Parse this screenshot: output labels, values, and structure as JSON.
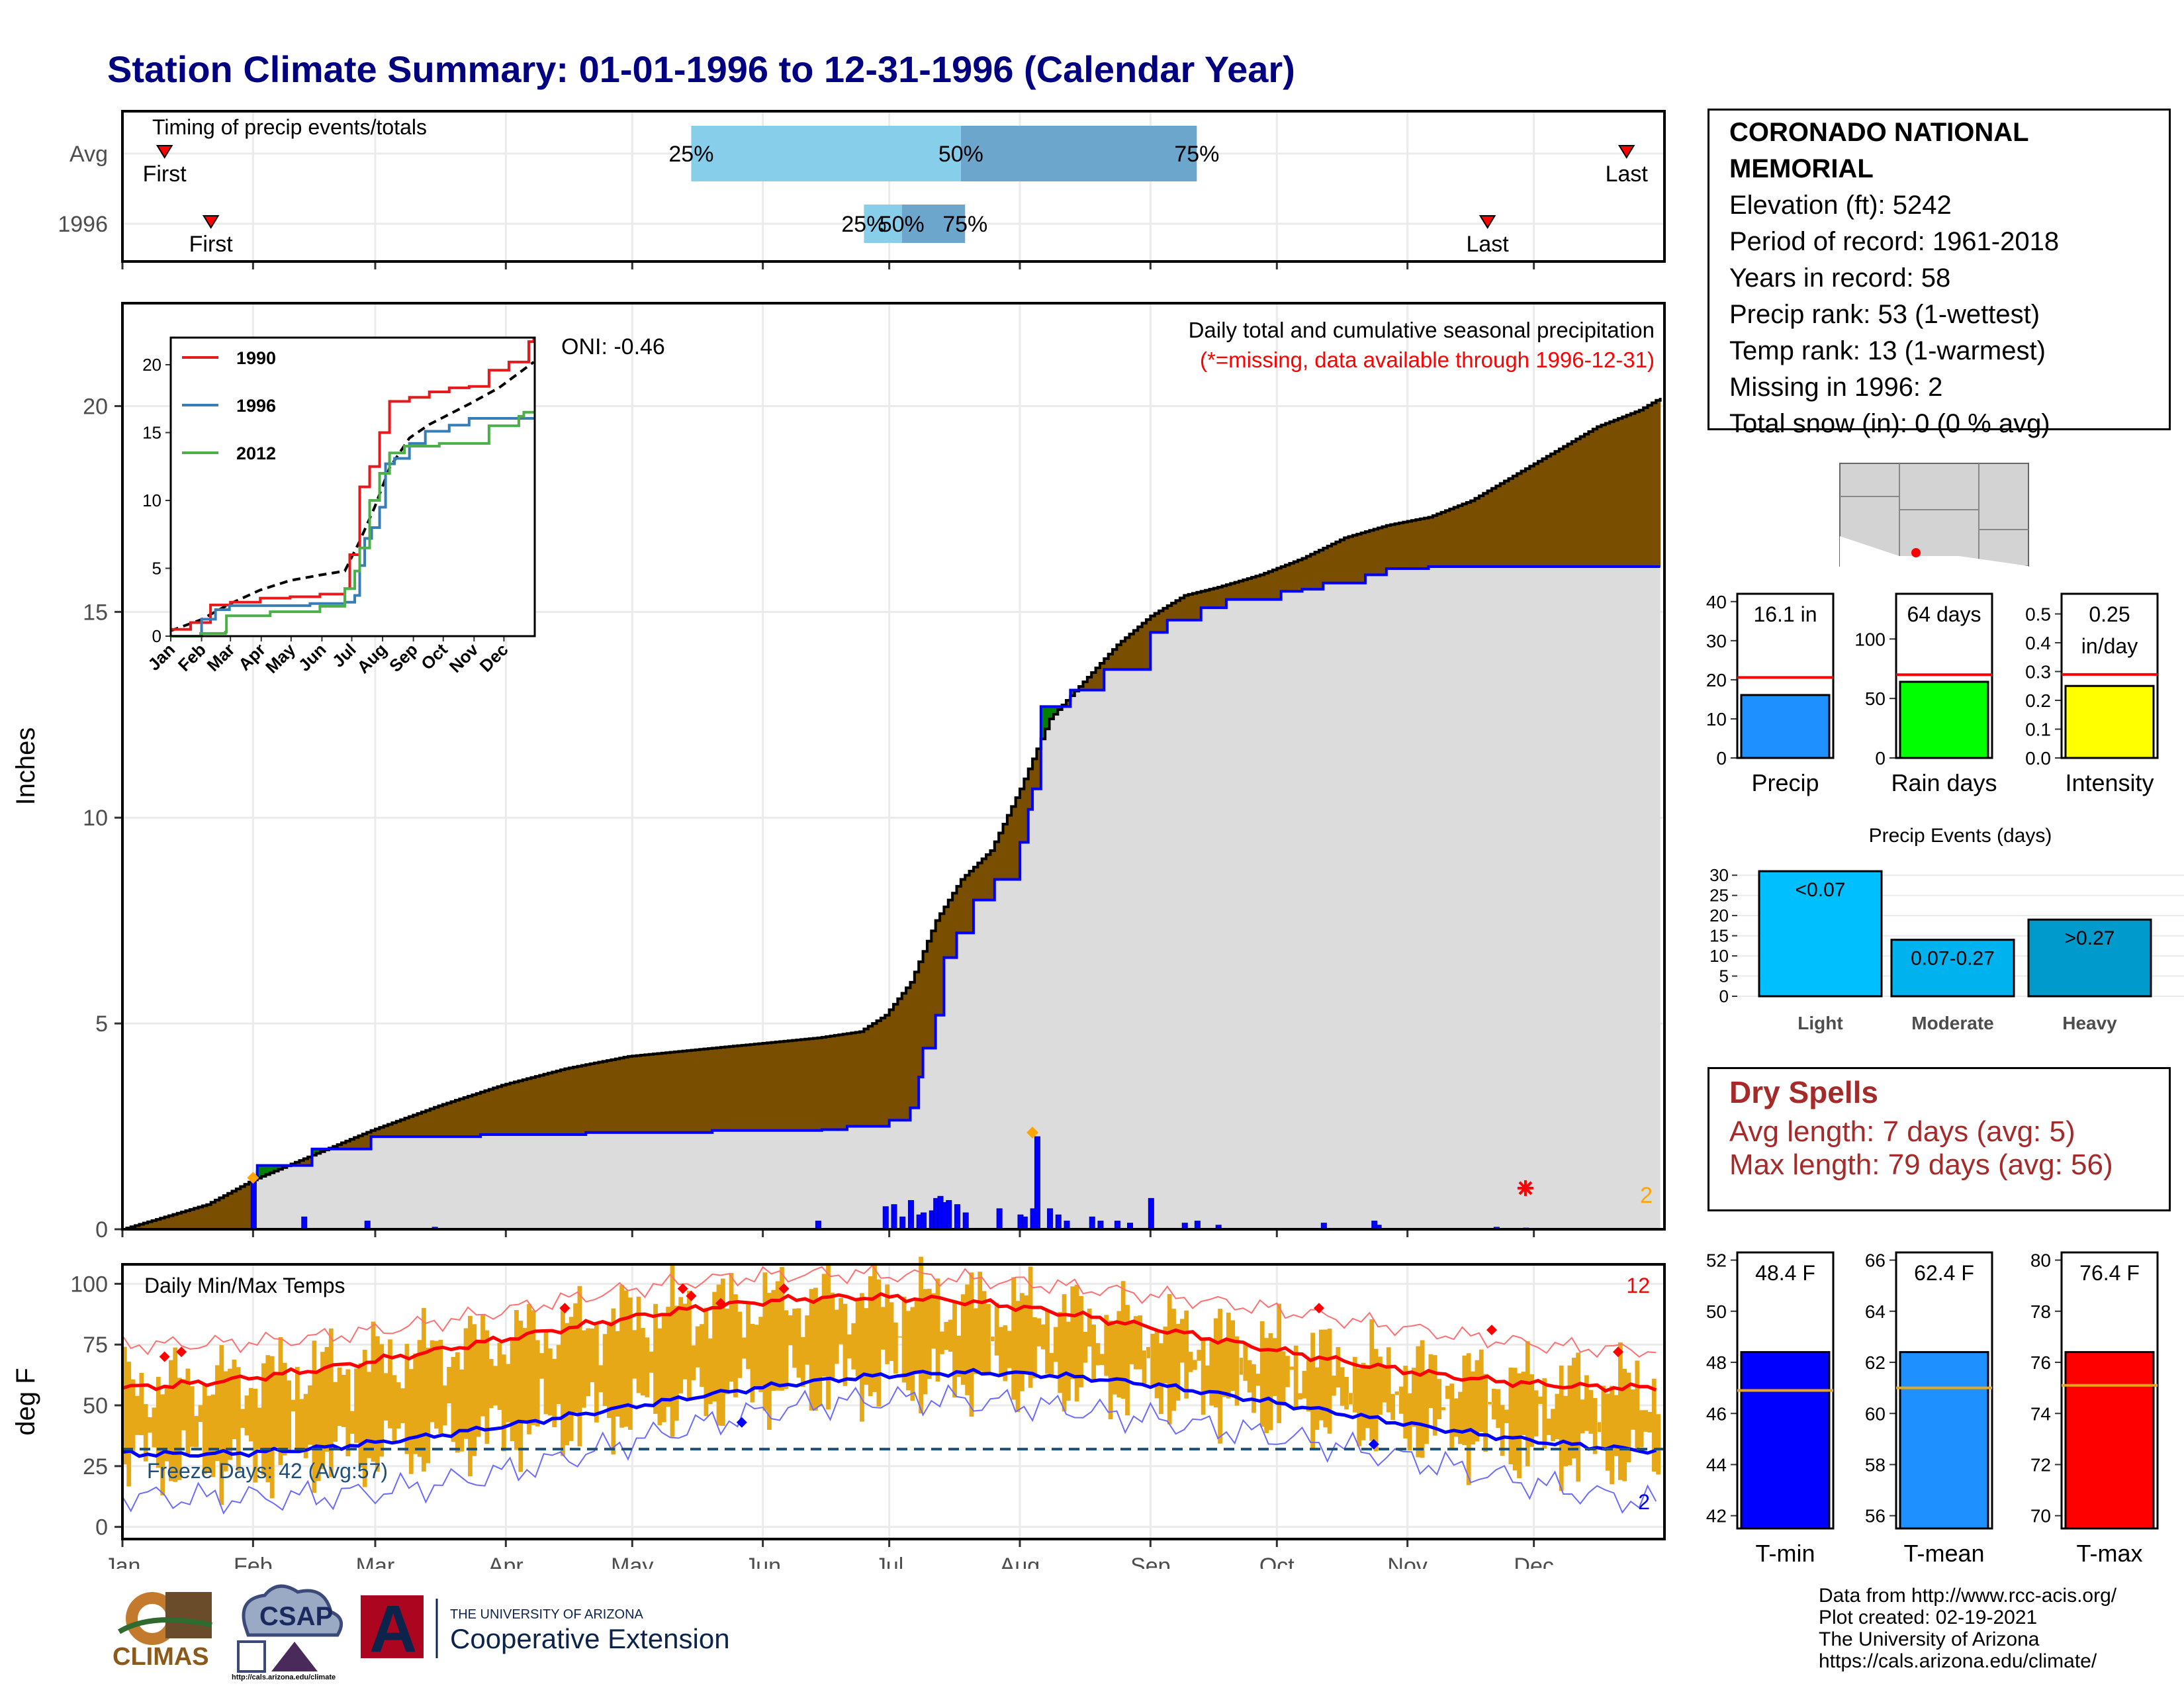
{
  "title": "Station Climate Summary: 01-01-1996 to 12-31-1996 (Calendar Year)",
  "colors": {
    "brown": "#7a4e00",
    "green": "#008000",
    "blue": "#0000ff",
    "gray_fill": "#dcdcdc",
    "light_blue": "#87ceeb",
    "mid_blue": "#6ca6cd",
    "orange": "#e6a817",
    "red": "#ff0000",
    "dark_red": "#a52a2a",
    "navy": "#000080"
  },
  "station": {
    "name": "CORONADO NATIONAL MEMORIAL",
    "elevation": "Elevation (ft): 5242",
    "period": "Period of record: 1961-2018",
    "years": "Years in record: 58",
    "precip_rank": "Precip rank: 53 (1-wettest)",
    "temp_rank": "Temp rank: 13 (1-warmest)",
    "missing": "Missing in 1996: 2",
    "snow": "Total snow (in): 0 (0 % avg)"
  },
  "dry_spells": {
    "title": "Dry Spells",
    "avg": "Avg length: 7 days (avg: 5)",
    "max": "Max length: 79 days (avg: 56)"
  },
  "credits": {
    "line1": "Data from http://www.rcc-acis.org/",
    "line2": "Plot created: 02-19-2021",
    "line3": "The University of Arizona",
    "line4": "https://cals.arizona.edu/climate/"
  },
  "logos": {
    "climas": "CLIMAS",
    "csap": "CSAP",
    "csap_url": "http://cals.arizona.edu/climate",
    "ua_a": "A",
    "ua_line1": "THE UNIVERSITY OF ARIZONA",
    "ua_line2": "Cooperative Extension"
  },
  "months": [
    "Jan",
    "Feb",
    "Mar",
    "Apr",
    "May",
    "Jun",
    "Jul",
    "Aug",
    "Sep",
    "Oct",
    "Nov",
    "Dec"
  ],
  "chart_data": [
    {
      "id": "timing",
      "type": "bar",
      "title": "Timing of precip events/totals",
      "rows": [
        {
          "label": "Avg",
          "first_day": 10,
          "q25_day": 135,
          "q50_day": 199,
          "q75_day": 255,
          "last_day": 357,
          "first_label": "First",
          "last_label": "Last",
          "q25_label": "25%",
          "q50_label": "50%",
          "q75_label": "75%"
        },
        {
          "label": "1996",
          "first_day": 21,
          "q25_day": 176,
          "q50_day": 185,
          "q75_day": 200,
          "last_day": 324,
          "first_label": "First",
          "last_label": "Last",
          "q25_label": "25%",
          "q50_label": "50%",
          "q75_label": "75%"
        }
      ]
    },
    {
      "id": "precip",
      "type": "area",
      "title": "Daily total and cumulative seasonal precipitation",
      "subtitle": "(*=missing, data available through 1996-12-31)",
      "ylabel": "Inches",
      "ylim": [
        0,
        22.5
      ],
      "yticks": [
        0,
        5,
        10,
        15,
        20
      ],
      "oni": "ONI: -0.46",
      "missing_count": "2",
      "avg_cumulative": [
        [
          0,
          0
        ],
        [
          10,
          0.3
        ],
        [
          20,
          0.6
        ],
        [
          31,
          1.2
        ],
        [
          45,
          1.8
        ],
        [
          59,
          2.4
        ],
        [
          75,
          3.0
        ],
        [
          90,
          3.5
        ],
        [
          105,
          3.9
        ],
        [
          120,
          4.2
        ],
        [
          135,
          4.35
        ],
        [
          150,
          4.5
        ],
        [
          165,
          4.65
        ],
        [
          175,
          4.8
        ],
        [
          181,
          5.2
        ],
        [
          187,
          6.0
        ],
        [
          193,
          7.5
        ],
        [
          199,
          8.5
        ],
        [
          206,
          9.2
        ],
        [
          213,
          10.7
        ],
        [
          220,
          12.4
        ],
        [
          228,
          13.3
        ],
        [
          236,
          14.2
        ],
        [
          244,
          14.9
        ],
        [
          252,
          15.4
        ],
        [
          260,
          15.6
        ],
        [
          270,
          15.9
        ],
        [
          280,
          16.3
        ],
        [
          290,
          16.8
        ],
        [
          300,
          17.1
        ],
        [
          310,
          17.3
        ],
        [
          320,
          17.7
        ],
        [
          330,
          18.3
        ],
        [
          340,
          18.9
        ],
        [
          350,
          19.5
        ],
        [
          360,
          19.9
        ],
        [
          365,
          20.2
        ]
      ],
      "obs_cumulative": [
        [
          0,
          0
        ],
        [
          30,
          0
        ],
        [
          31,
          1.25
        ],
        [
          32,
          1.55
        ],
        [
          44,
          1.55
        ],
        [
          45,
          1.95
        ],
        [
          58,
          1.95
        ],
        [
          59,
          2.25
        ],
        [
          85,
          2.3
        ],
        [
          110,
          2.35
        ],
        [
          140,
          2.4
        ],
        [
          166,
          2.42
        ],
        [
          172,
          2.5
        ],
        [
          182,
          2.65
        ],
        [
          187,
          2.95
        ],
        [
          189,
          3.7
        ],
        [
          190,
          4.4
        ],
        [
          193,
          5.2
        ],
        [
          195,
          6.6
        ],
        [
          198,
          7.2
        ],
        [
          202,
          8.0
        ],
        [
          207,
          8.5
        ],
        [
          213,
          9.4
        ],
        [
          215,
          10.2
        ],
        [
          216,
          10.7
        ],
        [
          218,
          12.7
        ],
        [
          225,
          13.1
        ],
        [
          233,
          13.6
        ],
        [
          244,
          14.5
        ],
        [
          248,
          14.8
        ],
        [
          256,
          15.1
        ],
        [
          262,
          15.3
        ],
        [
          275,
          15.5
        ],
        [
          280,
          15.55
        ],
        [
          285,
          15.7
        ],
        [
          295,
          15.9
        ],
        [
          300,
          16.05
        ],
        [
          310,
          16.1
        ],
        [
          365,
          16.1
        ]
      ],
      "daily_bars": [
        [
          31,
          1.25
        ],
        [
          43,
          0.3
        ],
        [
          58,
          0.2
        ],
        [
          74,
          0.05
        ],
        [
          165,
          0.2
        ],
        [
          181,
          0.55
        ],
        [
          183,
          0.6
        ],
        [
          185,
          0.3
        ],
        [
          187,
          0.7
        ],
        [
          189,
          0.35
        ],
        [
          190,
          0.4
        ],
        [
          192,
          0.45
        ],
        [
          193,
          0.75
        ],
        [
          194,
          0.8
        ],
        [
          195,
          0.65
        ],
        [
          196,
          0.7
        ],
        [
          198,
          0.6
        ],
        [
          200,
          0.4
        ],
        [
          208,
          0.5
        ],
        [
          213,
          0.35
        ],
        [
          214,
          0.3
        ],
        [
          216,
          0.5
        ],
        [
          217,
          2.25
        ],
        [
          220,
          0.5
        ],
        [
          222,
          0.35
        ],
        [
          224,
          0.2
        ],
        [
          230,
          0.3
        ],
        [
          232,
          0.2
        ],
        [
          236,
          0.2
        ],
        [
          239,
          0.15
        ],
        [
          244,
          0.75
        ],
        [
          252,
          0.15
        ],
        [
          255,
          0.2
        ],
        [
          260,
          0.1
        ],
        [
          285,
          0.15
        ],
        [
          297,
          0.2
        ],
        [
          298,
          0.1
        ],
        [
          326,
          0.05
        ],
        [
          333,
          0.03
        ]
      ],
      "event_marks": [
        [
          31,
          1.25
        ],
        [
          216,
          2.35
        ]
      ],
      "missing_marks": [
        [
          333,
          1.0
        ]
      ]
    },
    {
      "id": "inset",
      "type": "line",
      "xlabels": [
        "Jan",
        "Feb",
        "Mar",
        "Apr",
        "May",
        "Jun",
        "Jul",
        "Aug",
        "Sep",
        "Oct",
        "Nov",
        "Dec"
      ],
      "ylim": [
        0,
        22
      ],
      "yticks": [
        0,
        5,
        10,
        15,
        20
      ],
      "series": [
        {
          "name": "1990",
          "color": "#e41a1c",
          "values": [
            [
              0,
              0.5
            ],
            [
              20,
              1
            ],
            [
              40,
              2.3
            ],
            [
              60,
              2.5
            ],
            [
              90,
              2.8
            ],
            [
              120,
              2.9
            ],
            [
              150,
              3.1
            ],
            [
              175,
              3.5
            ],
            [
              180,
              6
            ],
            [
              190,
              11
            ],
            [
              200,
              12.5
            ],
            [
              210,
              15
            ],
            [
              220,
              17.3
            ],
            [
              240,
              17.6
            ],
            [
              260,
              18
            ],
            [
              280,
              18.3
            ],
            [
              300,
              18.4
            ],
            [
              320,
              19.6
            ],
            [
              340,
              20.2
            ],
            [
              360,
              21.7
            ],
            [
              365,
              22
            ]
          ]
        },
        {
          "name": "1996",
          "color": "#377eb8",
          "values": [
            [
              0,
              0
            ],
            [
              30,
              0
            ],
            [
              31,
              1.25
            ],
            [
              45,
              1.95
            ],
            [
              59,
              2.25
            ],
            [
              140,
              2.4
            ],
            [
              175,
              2.5
            ],
            [
              185,
              3
            ],
            [
              190,
              5.2
            ],
            [
              195,
              7.2
            ],
            [
              202,
              8
            ],
            [
              210,
              9.5
            ],
            [
              216,
              12.7
            ],
            [
              225,
              13.1
            ],
            [
              240,
              14.2
            ],
            [
              256,
              15.1
            ],
            [
              280,
              15.55
            ],
            [
              300,
              16.05
            ],
            [
              365,
              16.1
            ]
          ]
        },
        {
          "name": "2012",
          "color": "#4daf4a",
          "values": [
            [
              0,
              0
            ],
            [
              30,
              0.2
            ],
            [
              55,
              0.3
            ],
            [
              56,
              1.5
            ],
            [
              100,
              1.8
            ],
            [
              150,
              2.2
            ],
            [
              175,
              3.5
            ],
            [
              185,
              4.8
            ],
            [
              190,
              6.5
            ],
            [
              200,
              10
            ],
            [
              210,
              12
            ],
            [
              220,
              13.5
            ],
            [
              235,
              14
            ],
            [
              270,
              14.2
            ],
            [
              320,
              15.5
            ],
            [
              350,
              16.2
            ],
            [
              355,
              16.5
            ],
            [
              365,
              16.5
            ]
          ]
        }
      ],
      "avg_values": [
        [
          0,
          0.4
        ],
        [
          30,
          1.2
        ],
        [
          60,
          2.4
        ],
        [
          90,
          3.4
        ],
        [
          120,
          4.1
        ],
        [
          150,
          4.5
        ],
        [
          175,
          4.8
        ],
        [
          190,
          7
        ],
        [
          205,
          9.5
        ],
        [
          220,
          12.4
        ],
        [
          240,
          14.6
        ],
        [
          260,
          15.6
        ],
        [
          300,
          17.1
        ],
        [
          330,
          18.3
        ],
        [
          365,
          20.2
        ]
      ]
    },
    {
      "id": "temps",
      "type": "line",
      "title": "Daily Min/Max Temps",
      "ylabel": "deg F",
      "ylim": [
        -5,
        108
      ],
      "yticks": [
        0,
        25,
        50,
        75,
        100
      ],
      "freeze_label": "Freeze Days: 42 (Avg:57)",
      "freeze_temp": 32,
      "record_high_count": "12",
      "record_low_count": "2"
    },
    {
      "id": "summary_bars",
      "type": "bar",
      "panels": [
        {
          "label": "Precip",
          "value_label": "16.1 in",
          "value": 16.1,
          "avg": 20.6,
          "ymax": 42,
          "yticks": [
            0,
            10,
            20,
            30,
            40
          ],
          "color": "#1e90ff"
        },
        {
          "label": "Rain days",
          "value_label": "64 days",
          "value": 64,
          "avg": 70,
          "ymax": 138,
          "yticks": [
            0,
            50,
            100
          ],
          "color": "#00ff00"
        },
        {
          "label": "Intensity",
          "value_label": "0.25",
          "value_label2": "in/day",
          "value": 0.25,
          "avg": 0.29,
          "ymax": 0.57,
          "yticks": [
            0.0,
            0.1,
            0.2,
            0.3,
            0.4,
            0.5
          ],
          "color": "#ffff00"
        }
      ]
    },
    {
      "id": "events",
      "type": "bar",
      "title": "Precip Events (days)",
      "categories": [
        "Light",
        "Moderate",
        "Heavy"
      ],
      "value_labels": [
        "<0.07",
        "0.07-0.27",
        ">0.27"
      ],
      "values": [
        31,
        14,
        19
      ],
      "ymax": 32,
      "yticks": [
        0,
        5,
        10,
        15,
        20,
        25,
        30
      ],
      "colors": [
        "#00bfff",
        "#00b2ee",
        "#009acd"
      ]
    },
    {
      "id": "temp_bars",
      "type": "bar",
      "panels": [
        {
          "label": "T-min",
          "value_label": "48.4 F",
          "value": 48.4,
          "avg": 46.9,
          "ymin": 41.5,
          "ymax": 52.3,
          "yticks": [
            42,
            44,
            46,
            48,
            50,
            52
          ],
          "color": "#0000ff"
        },
        {
          "label": "T-mean",
          "value_label": "62.4 F",
          "value": 62.4,
          "avg": 61.0,
          "ymin": 55.5,
          "ymax": 66.3,
          "yticks": [
            56,
            58,
            60,
            62,
            64,
            66
          ],
          "color": "#1e90ff"
        },
        {
          "label": "T-max",
          "value_label": "76.4 F",
          "value": 76.4,
          "avg": 75.1,
          "ymin": 69.5,
          "ymax": 80.3,
          "yticks": [
            70,
            72,
            74,
            76,
            78,
            80
          ],
          "color": "#ff0000"
        }
      ]
    }
  ]
}
